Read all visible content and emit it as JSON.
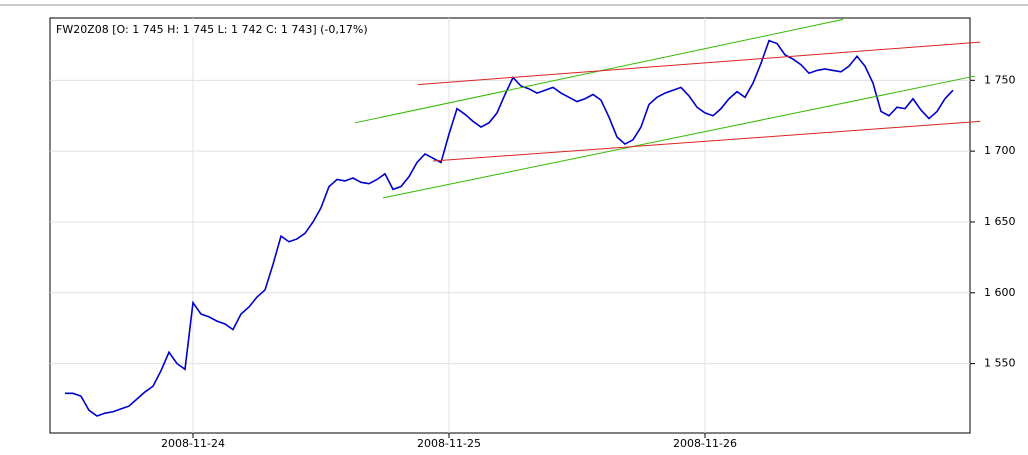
{
  "chart_data": {
    "type": "line",
    "title": "FW20Z08 [O: 1 745  H: 1 745  L: 1 742  C: 1 743] (-0,17%)",
    "categories": [
      null,
      null,
      null,
      null,
      null,
      null,
      null,
      null,
      null,
      null,
      null,
      null,
      null,
      null,
      null,
      null,
      "2008-11-24",
      null,
      null,
      null,
      null,
      null,
      null,
      null,
      null,
      null,
      null,
      null,
      null,
      null,
      null,
      null,
      null,
      null,
      null,
      null,
      null,
      null,
      null,
      null,
      null,
      null,
      null,
      null,
      null,
      null,
      null,
      null,
      "2008-11-25",
      null,
      null,
      null,
      null,
      null,
      null,
      null,
      null,
      null,
      null,
      null,
      null,
      null,
      null,
      null,
      null,
      null,
      null,
      null,
      null,
      null,
      null,
      null,
      null,
      null,
      null,
      null,
      null,
      null,
      null,
      null,
      "2008-11-26",
      null,
      null,
      null,
      null,
      null,
      null,
      null,
      null,
      null,
      null,
      null,
      null,
      null,
      null,
      null,
      null,
      null,
      null,
      null,
      null,
      null,
      null,
      null,
      null,
      null,
      null,
      null,
      null,
      null,
      null,
      null
    ],
    "series": [
      {
        "color": "#0000cc",
        "values": [
          1529,
          1529,
          1527,
          1517,
          1513,
          1515,
          1516,
          1518,
          1520,
          1525,
          1530,
          1534,
          1545,
          1558,
          1550,
          1546,
          1593,
          1585,
          1583,
          1580,
          1578,
          1574,
          1585,
          1590,
          1597,
          1602,
          1620,
          1640,
          1636,
          1638,
          1642,
          1650,
          1660,
          1675,
          1680,
          1679,
          1681,
          1678,
          1677,
          1680,
          1684,
          1673,
          1675,
          1682,
          1692,
          1698,
          1695,
          1692,
          1712,
          1730,
          1726,
          1721,
          1717,
          1720,
          1727,
          1740,
          1752,
          1746,
          1744,
          1741,
          1743,
          1745,
          1741,
          1738,
          1735,
          1737,
          1740,
          1736,
          1724,
          1710,
          1705,
          1708,
          1717,
          1733,
          1738,
          1741,
          1743,
          1745,
          1739,
          1731,
          1727,
          1725,
          1730,
          1737,
          1742,
          1738,
          1748,
          1762,
          1778,
          1776,
          1768,
          1765,
          1761,
          1755,
          1757,
          1758,
          1757,
          1756,
          1760,
          1767,
          1760,
          1748,
          1728,
          1725,
          1731,
          1730,
          1737,
          1729,
          1723,
          1728,
          1737,
          1743
        ]
      }
    ],
    "trend_lines": [
      {
        "color": "#33bb00",
        "start": [
          36.25,
          1720
        ],
        "end": [
          97.25,
          1793
        ]
      },
      {
        "color": "#33bb00",
        "start": [
          39.75,
          1667
        ],
        "end": [
          113.75,
          1753
        ]
      },
      {
        "color": "#dd2222",
        "start": [
          44.1,
          1747
        ],
        "end": [
          114.4,
          1777
        ]
      },
      {
        "color": "#dd2222",
        "start": [
          46,
          1693
        ],
        "end": [
          114.4,
          1721
        ]
      }
    ],
    "ylim": [
      1501,
      1794
    ],
    "yticks": [
      {
        "value": 1550,
        "label": "1 550"
      },
      {
        "value": 1600,
        "label": "1 600"
      },
      {
        "value": 1650,
        "label": "1 650"
      },
      {
        "value": 1700,
        "label": "1 700"
      },
      {
        "value": 1750,
        "label": "1 750"
      }
    ],
    "grid": true
  }
}
